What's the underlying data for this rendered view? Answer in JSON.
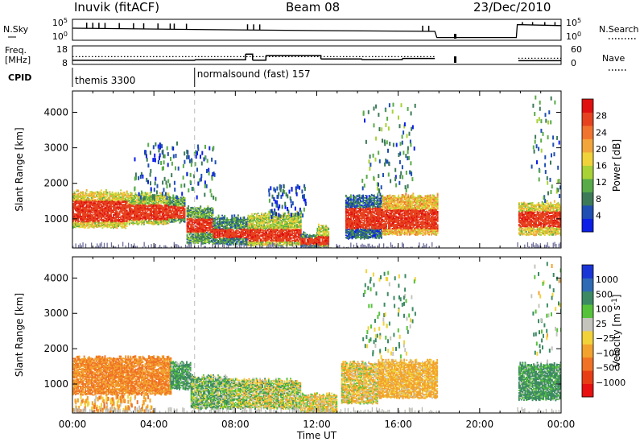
{
  "header": {
    "station": "Inuvik (fitACF)",
    "beam": "Beam 08",
    "date": "23/Dec/2010"
  },
  "nsky_panel": {
    "label_top": "N.Sky",
    "ticks_left": [
      "10^5",
      "10^0"
    ],
    "ticks_right": [
      "10^5",
      "10^0"
    ],
    "right_label": "N.Search",
    "baseline_points": [
      [
        0,
        0.6
      ],
      [
        6,
        0.52
      ],
      [
        12,
        0.45
      ],
      [
        17.8,
        0.4
      ],
      [
        17.9,
        0.02
      ],
      [
        21.8,
        0.02
      ],
      [
        21.85,
        0.82
      ],
      [
        24,
        0.76
      ]
    ],
    "spikes_hour": [
      0.7,
      1.0,
      1.3,
      1.6,
      2.3,
      3.0,
      3.5,
      4.2,
      4.8,
      5.0,
      5.6,
      8.6,
      8.9,
      9.2,
      17.2,
      17.5,
      22.1,
      22.6,
      23.2,
      23.7
    ]
  },
  "freq_panel": {
    "label_line1": "Freq.",
    "label_line2": "[MHz]",
    "ticks_left": [
      "18",
      "8"
    ],
    "ticks_right": [
      "60",
      "0"
    ],
    "right_label": "Nave",
    "freq_steps": [
      [
        0,
        10.2
      ],
      [
        6,
        10.5
      ],
      [
        8.5,
        13.5
      ],
      [
        8.85,
        10.3
      ],
      [
        9.5,
        12.8
      ],
      [
        12.2,
        10.9
      ],
      [
        14.2,
        10.6
      ],
      [
        16.2,
        11.2
      ],
      [
        17.8,
        8.2
      ],
      [
        21.9,
        10.0
      ],
      [
        24,
        10.0
      ]
    ],
    "nave_level": 0.42
  },
  "cpid_panel": {
    "label": "CPID",
    "segments": [
      {
        "start": 0,
        "end": 6,
        "label": "themis 3300"
      },
      {
        "start": 6,
        "end": 24,
        "label": "normalsound (fast) 157"
      }
    ]
  },
  "chart_data": [
    {
      "type": "heatmap",
      "quantity": "Power",
      "ylabel": "Slant Range [km]",
      "yticks": [
        1000,
        2000,
        3000,
        4000
      ],
      "ylim": [
        180,
        4600
      ],
      "xlim": [
        0,
        24
      ],
      "colorbar": {
        "label": "Power [dB]",
        "tick_labels": [
          "4",
          "8",
          "12",
          "16",
          "20",
          "24",
          "28"
        ],
        "colors": [
          "#0b1fe6",
          "#1f4fb3",
          "#3c7a58",
          "#58ab48",
          "#a8d235",
          "#f0d23a",
          "#f2a53b",
          "#f1742e",
          "#e6421f",
          "#e01010"
        ]
      },
      "regions": [
        {
          "t0": 0.0,
          "t1": 2.7,
          "r0": 750,
          "r1": 1750,
          "core": [
            900,
            1500
          ],
          "v": 24
        },
        {
          "t0": 2.7,
          "t1": 4.7,
          "r0": 850,
          "r1": 1700,
          "core": [
            950,
            1400
          ],
          "v": 22
        },
        {
          "t0": 4.7,
          "t1": 5.5,
          "r0": 900,
          "r1": 1600,
          "core": [
            1000,
            1350
          ],
          "v": 18
        },
        {
          "t0": 5.6,
          "t1": 6.9,
          "r0": 300,
          "r1": 1300,
          "core": [
            600,
            1000
          ],
          "v": 18
        },
        {
          "t0": 6.9,
          "t1": 8.6,
          "r0": 280,
          "r1": 1050,
          "core": [
            450,
            700
          ],
          "v": 16
        },
        {
          "t0": 8.6,
          "t1": 11.2,
          "r0": 250,
          "r1": 1150,
          "core": [
            350,
            700
          ],
          "v": 22
        },
        {
          "t0": 11.2,
          "t1": 12.0,
          "r0": 220,
          "r1": 600,
          "core": [
            260,
            450
          ],
          "v": 16
        },
        {
          "t0": 12.0,
          "t1": 12.6,
          "r0": 200,
          "r1": 800,
          "core": [
            250,
            500
          ],
          "v": 22
        },
        {
          "t0": 13.4,
          "t1": 15.2,
          "r0": 450,
          "r1": 1650,
          "core": [
            700,
            1300
          ],
          "v": 14
        },
        {
          "t0": 15.2,
          "t1": 17.9,
          "r0": 550,
          "r1": 1650,
          "core": [
            700,
            1250
          ],
          "v": 26
        },
        {
          "t0": 21.9,
          "t1": 24.0,
          "r0": 550,
          "r1": 1450,
          "core": [
            750,
            1200
          ],
          "v": 24
        }
      ],
      "scatter_regions": [
        {
          "t0": 14.2,
          "t1": 16.8,
          "r0": 1800,
          "r1": 4300,
          "v": 10
        },
        {
          "t0": 22.5,
          "t1": 24.0,
          "r0": 1500,
          "r1": 4500,
          "v": 10
        },
        {
          "t0": 9.6,
          "t1": 11.5,
          "r0": 1100,
          "r1": 2000,
          "v": 6
        },
        {
          "t0": 3.0,
          "t1": 7.0,
          "r0": 1600,
          "r1": 3200,
          "v": 8
        }
      ]
    },
    {
      "type": "heatmap",
      "quantity": "Velocity",
      "ylabel": "Slant Range [km]",
      "yticks": [
        1000,
        2000,
        3000,
        4000
      ],
      "ylim": [
        180,
        4600
      ],
      "xlim": [
        0,
        24
      ],
      "xlabel": "Time UT",
      "xtick_labels": [
        "00:00",
        "04:00",
        "08:00",
        "12:00",
        "16:00",
        "20:00",
        "00:00"
      ],
      "colorbar": {
        "label": "Velocity [m s^-1]",
        "tick_labels": [
          "1000",
          "500",
          "100",
          "25",
          "−25",
          "−100",
          "−500",
          "−1000"
        ],
        "colors": [
          "#1a35d6",
          "#2f6ab4",
          "#3c8a63",
          "#56c23a",
          "#c4c4bc",
          "#f2d23a",
          "#f2a22e",
          "#f07226",
          "#e83e16",
          "#e81010"
        ]
      },
      "regions": [
        {
          "t0": 0.0,
          "t1": 4.8,
          "r0": 700,
          "r1": 1750,
          "v": -300
        },
        {
          "t0": 4.8,
          "t1": 5.8,
          "r0": 850,
          "r1": 1600,
          "v": 150
        },
        {
          "t0": 5.8,
          "t1": 7.8,
          "r0": 300,
          "r1": 1200,
          "v": 60
        },
        {
          "t0": 7.8,
          "t1": 11.2,
          "r0": 300,
          "r1": 1100,
          "v": 0
        },
        {
          "t0": 11.2,
          "t1": 13.0,
          "r0": 200,
          "r1": 700,
          "v": -60
        },
        {
          "t0": 13.2,
          "t1": 15.0,
          "r0": 450,
          "r1": 1600,
          "v": -80
        },
        {
          "t0": 15.0,
          "t1": 17.9,
          "r0": 600,
          "r1": 1650,
          "v": -150
        },
        {
          "t0": 21.9,
          "t1": 24.0,
          "r0": 550,
          "r1": 1550,
          "v": 150
        }
      ],
      "scatter_regions": [
        {
          "t0": 14.2,
          "t1": 16.8,
          "r0": 1800,
          "r1": 4300,
          "v": 100
        },
        {
          "t0": 22.5,
          "t1": 24.0,
          "r0": 1500,
          "r1": 4500,
          "v": 60
        },
        {
          "t0": 0.0,
          "t1": 4.0,
          "r0": 200,
          "r1": 700,
          "v": -200
        }
      ]
    }
  ]
}
